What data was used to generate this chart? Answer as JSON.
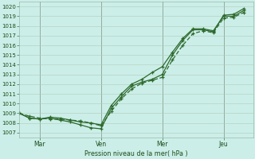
{
  "background_color": "#cceee8",
  "grid_color": "#aaccbb",
  "line_color": "#2d6a2d",
  "xlabel_text": "Pression niveau de la mer( hPa )",
  "ylim": [
    1006.5,
    1020.5
  ],
  "xtick_labels": [
    "Mar",
    "Ven",
    "Mer",
    "Jeu"
  ],
  "xtick_positions": [
    24,
    96,
    168,
    240
  ],
  "xlim": [
    0,
    275
  ],
  "vline_positions": [
    24,
    96,
    168,
    240
  ],
  "series1_x": [
    0,
    12,
    24,
    36,
    48,
    60,
    72,
    84,
    96,
    108,
    120,
    132,
    144,
    156,
    168,
    180,
    192,
    204,
    216,
    228,
    240,
    252,
    264
  ],
  "series1_y": [
    1009.0,
    1008.5,
    1008.4,
    1008.5,
    1008.3,
    1008.1,
    1007.8,
    1007.5,
    1007.4,
    1009.5,
    1010.7,
    1011.8,
    1012.2,
    1012.5,
    1013.0,
    1015.0,
    1016.5,
    1017.6,
    1017.6,
    1017.4,
    1019.1,
    1019.2,
    1019.8
  ],
  "series2_x": [
    0,
    12,
    24,
    36,
    48,
    60,
    72,
    84,
    96,
    108,
    120,
    132,
    144,
    156,
    168,
    180,
    192,
    204,
    216,
    228,
    240,
    252,
    264
  ],
  "series2_y": [
    1009.0,
    1008.7,
    1008.5,
    1008.4,
    1008.4,
    1008.3,
    1008.2,
    1008.0,
    1007.7,
    1009.2,
    1010.5,
    1011.5,
    1012.1,
    1012.4,
    1012.7,
    1014.5,
    1016.0,
    1017.2,
    1017.5,
    1017.3,
    1018.8,
    1018.9,
    1019.4
  ],
  "series3_x": [
    0,
    12,
    24,
    36,
    48,
    60,
    72,
    84,
    96,
    108,
    120,
    132,
    144,
    156,
    168,
    180,
    192,
    204,
    216,
    228,
    240,
    252,
    264
  ],
  "series3_y": [
    1009.0,
    1008.5,
    1008.4,
    1008.6,
    1008.5,
    1008.3,
    1008.1,
    1008.0,
    1007.8,
    1009.8,
    1011.0,
    1012.0,
    1012.5,
    1013.2,
    1013.8,
    1015.3,
    1016.7,
    1017.7,
    1017.7,
    1017.5,
    1019.0,
    1019.0,
    1019.6
  ]
}
